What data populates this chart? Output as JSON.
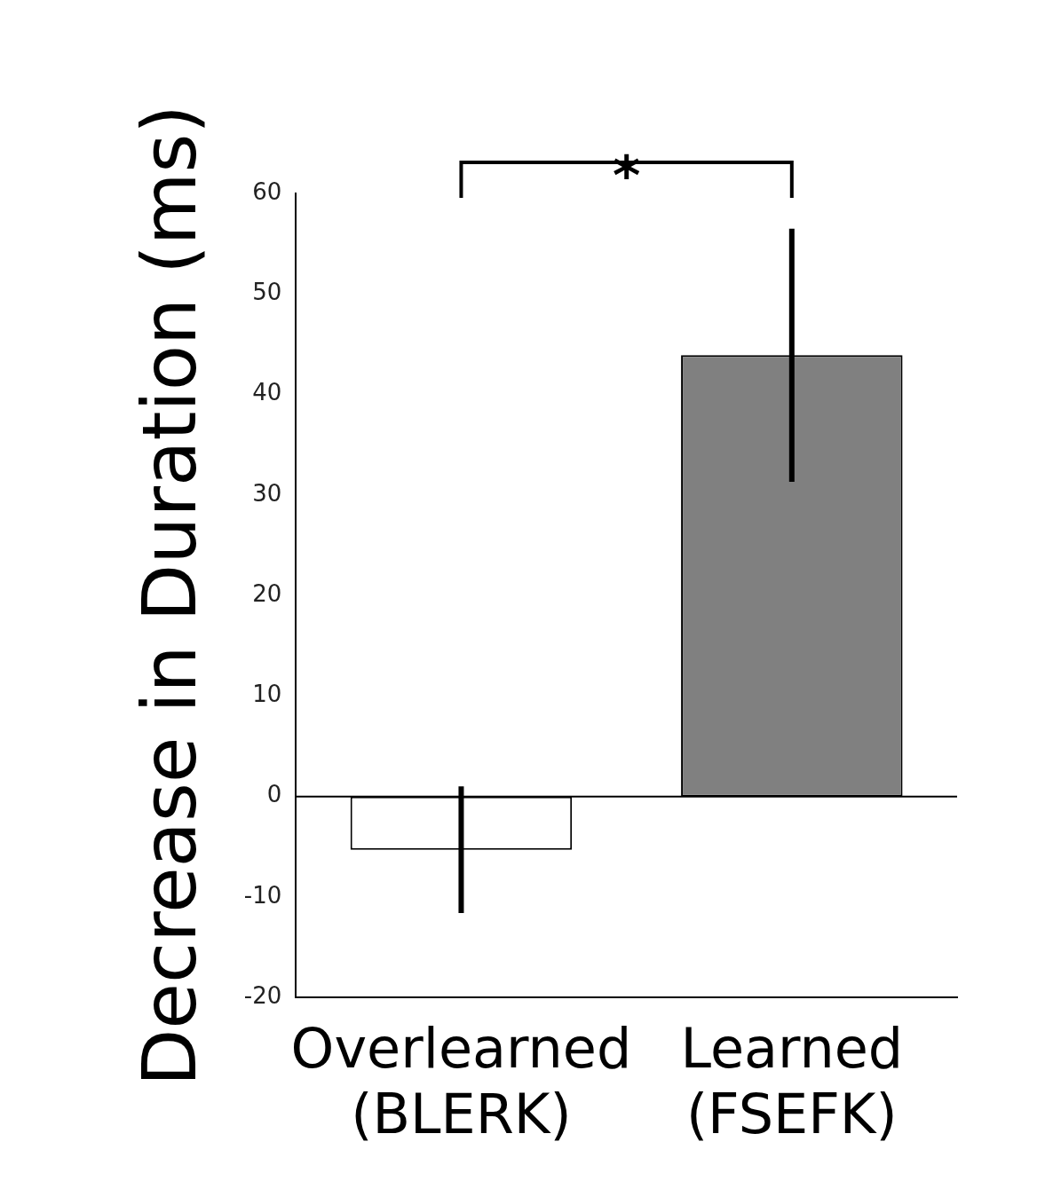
{
  "chart_data": {
    "type": "bar",
    "ylabel": "Decrease in Duration (ms)",
    "categories": [
      "Overlearned (BLERK)",
      "Learned (FSEFK)"
    ],
    "values": [
      -5.3,
      43.9
    ],
    "colors": [
      "#ffffff",
      "#808080"
    ],
    "errors": [
      6.3,
      12.6
    ],
    "ylim": [
      -20,
      60
    ],
    "yticks": [
      -20,
      -10,
      0,
      10,
      20,
      30,
      40,
      50,
      60
    ],
    "ref_lines": [
      {
        "axis": "y",
        "value": 0
      }
    ],
    "annotations": [
      "*"
    ],
    "grid": false,
    "legend": false
  }
}
